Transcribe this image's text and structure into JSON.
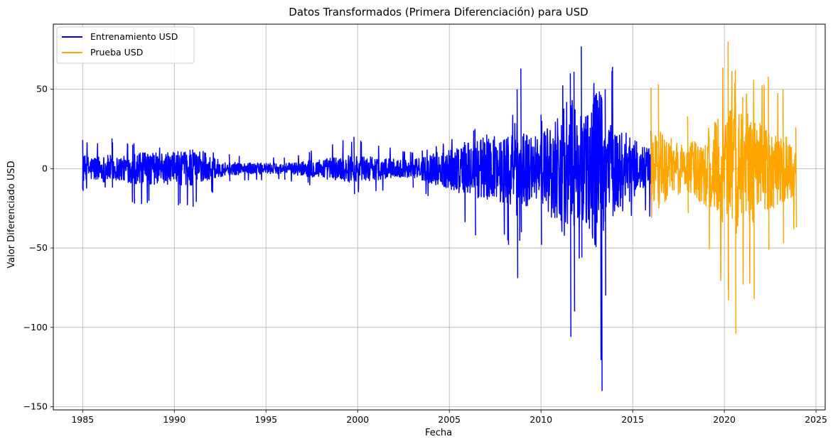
{
  "chart_data": {
    "type": "line",
    "title": "Datos Transformados (Primera Diferenciación) para USD",
    "xlabel": "Fecha",
    "ylabel": "Valor Diferenciado USD",
    "xlim": [
      1983.4,
      2025.5
    ],
    "ylim": [
      -152,
      91
    ],
    "x_ticks": [
      1985,
      1990,
      1995,
      2000,
      2005,
      2010,
      2015,
      2020,
      2025
    ],
    "y_ticks": [
      50,
      0,
      -50,
      -100,
      -150
    ],
    "y_tick_labels": [
      "50",
      "0",
      "−50",
      "−100",
      "−150"
    ],
    "grid": true,
    "legend_position": "top-left",
    "series": [
      {
        "name": "Entrenamiento USD",
        "color": "#0000ff",
        "x_range": [
          1985.0,
          2016.0
        ],
        "envelope": [
          {
            "x": 1985.0,
            "min": -14,
            "max": 18
          },
          {
            "x": 1986.6,
            "min": -12,
            "max": 19
          },
          {
            "x": 1987.8,
            "min": -22,
            "max": 16
          },
          {
            "x": 1990.2,
            "min": -23,
            "max": 11
          },
          {
            "x": 1991.0,
            "min": -24,
            "max": 12
          },
          {
            "x": 1993.0,
            "min": -8,
            "max": 9
          },
          {
            "x": 1996.0,
            "min": -7,
            "max": 7
          },
          {
            "x": 1999.8,
            "min": -16,
            "max": 20
          },
          {
            "x": 2003.0,
            "min": -12,
            "max": 10
          },
          {
            "x": 2006.4,
            "min": -42,
            "max": 25
          },
          {
            "x": 2008.2,
            "min": -48,
            "max": 20
          },
          {
            "x": 2008.7,
            "min": -69,
            "max": 50
          },
          {
            "x": 2008.9,
            "min": -40,
            "max": 63
          },
          {
            "x": 2010.0,
            "min": -48,
            "max": 34
          },
          {
            "x": 2011.6,
            "min": -106,
            "max": 60
          },
          {
            "x": 2011.8,
            "min": -90,
            "max": 61
          },
          {
            "x": 2012.2,
            "min": -56,
            "max": 77
          },
          {
            "x": 2013.3,
            "min": -140,
            "max": 45
          },
          {
            "x": 2013.5,
            "min": -80,
            "max": 50
          },
          {
            "x": 2013.9,
            "min": -30,
            "max": 64
          },
          {
            "x": 2016.0,
            "min": -30,
            "max": 24
          }
        ]
      },
      {
        "name": "Prueba USD",
        "color": "#ffa500",
        "x_range": [
          2016.0,
          2023.9
        ],
        "envelope": [
          {
            "x": 2016.0,
            "min": -31,
            "max": 51
          },
          {
            "x": 2016.4,
            "min": -25,
            "max": 53
          },
          {
            "x": 2018.0,
            "min": -28,
            "max": 33
          },
          {
            "x": 2020.2,
            "min": -83,
            "max": 80
          },
          {
            "x": 2020.6,
            "min": -104,
            "max": 62
          },
          {
            "x": 2021.0,
            "min": -73,
            "max": 45
          },
          {
            "x": 2021.6,
            "min": -82,
            "max": 56
          },
          {
            "x": 2022.4,
            "min": -51,
            "max": 58
          },
          {
            "x": 2023.2,
            "min": -47,
            "max": 50
          },
          {
            "x": 2023.9,
            "min": -37,
            "max": 26
          }
        ]
      }
    ]
  }
}
